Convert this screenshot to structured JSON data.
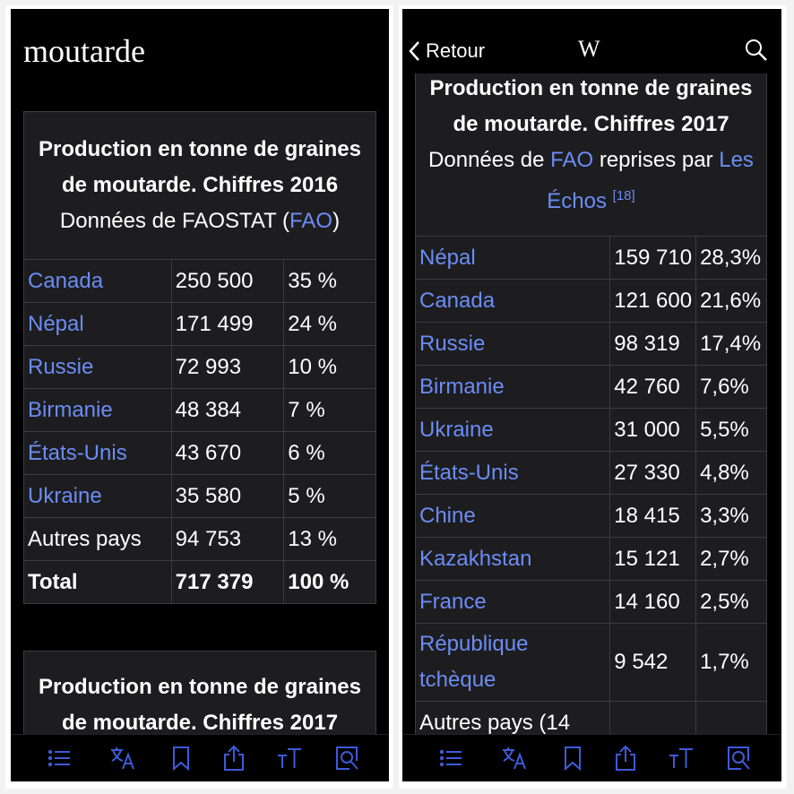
{
  "left": {
    "page_title": "moutarde",
    "table1": {
      "title": "Production en tonne de graines de moutarde. Chiffres 2016",
      "source_text": "Données de FAOSTAT (",
      "source_link": "FAO",
      "source_close": ")",
      "rows": [
        {
          "country": "Canada",
          "value": "250 500",
          "pct": "35 %",
          "link": true
        },
        {
          "country": "Népal",
          "value": "171 499",
          "pct": "24 %",
          "link": true
        },
        {
          "country": "Russie",
          "value": "72 993",
          "pct": "10 %",
          "link": true
        },
        {
          "country": "Birmanie",
          "value": "48 384",
          "pct": "7 %",
          "link": true
        },
        {
          "country": "États-Unis",
          "value": "43 670",
          "pct": "6 %",
          "link": true
        },
        {
          "country": "Ukraine",
          "value": "35 580",
          "pct": "5 %",
          "link": true
        },
        {
          "country": "Autres pays",
          "value": "94 753",
          "pct": "13 %",
          "link": false
        }
      ],
      "total": {
        "label": "Total",
        "value": "717 379",
        "pct": "100 %"
      }
    },
    "table2_title": "Production en tonne de graines de moutarde. Chiffres 2017"
  },
  "right": {
    "nav": {
      "back_label": "Retour",
      "logo": "W"
    },
    "table": {
      "title": "Production en tonne de graines de moutarde. Chiffres 2017",
      "source_prefix": "Données de ",
      "source_link1": "FAO",
      "source_mid": " reprises par ",
      "source_link2": "Les Échos",
      "ref": "[18]",
      "rows": [
        {
          "country": "Népal",
          "value": "159 710",
          "pct": "28,3%"
        },
        {
          "country": "Canada",
          "value": "121 600",
          "pct": "21,6%"
        },
        {
          "country": "Russie",
          "value": "98 319",
          "pct": "17,4%"
        },
        {
          "country": "Birmanie",
          "value": "42 760",
          "pct": "7,6%"
        },
        {
          "country": "Ukraine",
          "value": "31 000",
          "pct": "5,5%"
        },
        {
          "country": "États-Unis",
          "value": "27 330",
          "pct": "4,8%"
        },
        {
          "country": "Chine",
          "value": "18 415",
          "pct": "3,3%"
        },
        {
          "country": "Kazakhstan",
          "value": "15 121",
          "pct": "2,7%"
        },
        {
          "country": "France",
          "value": "14 160",
          "pct": "2,5%"
        }
      ],
      "rep_line1": "République",
      "rep_line2": "tchèque",
      "rep_value": "9 542",
      "rep_pct": "1,7%",
      "others_partial": "Autres pays (14"
    }
  },
  "toolbar_icons": [
    "contents-icon",
    "translate-icon",
    "bookmark-icon",
    "share-icon",
    "text-size-icon",
    "find-in-page-icon"
  ],
  "colors": {
    "link": "#6b8cf5",
    "toolbar_icon": "#3d5bd9",
    "background": "#000000",
    "cell": "#1d1d1f"
  }
}
